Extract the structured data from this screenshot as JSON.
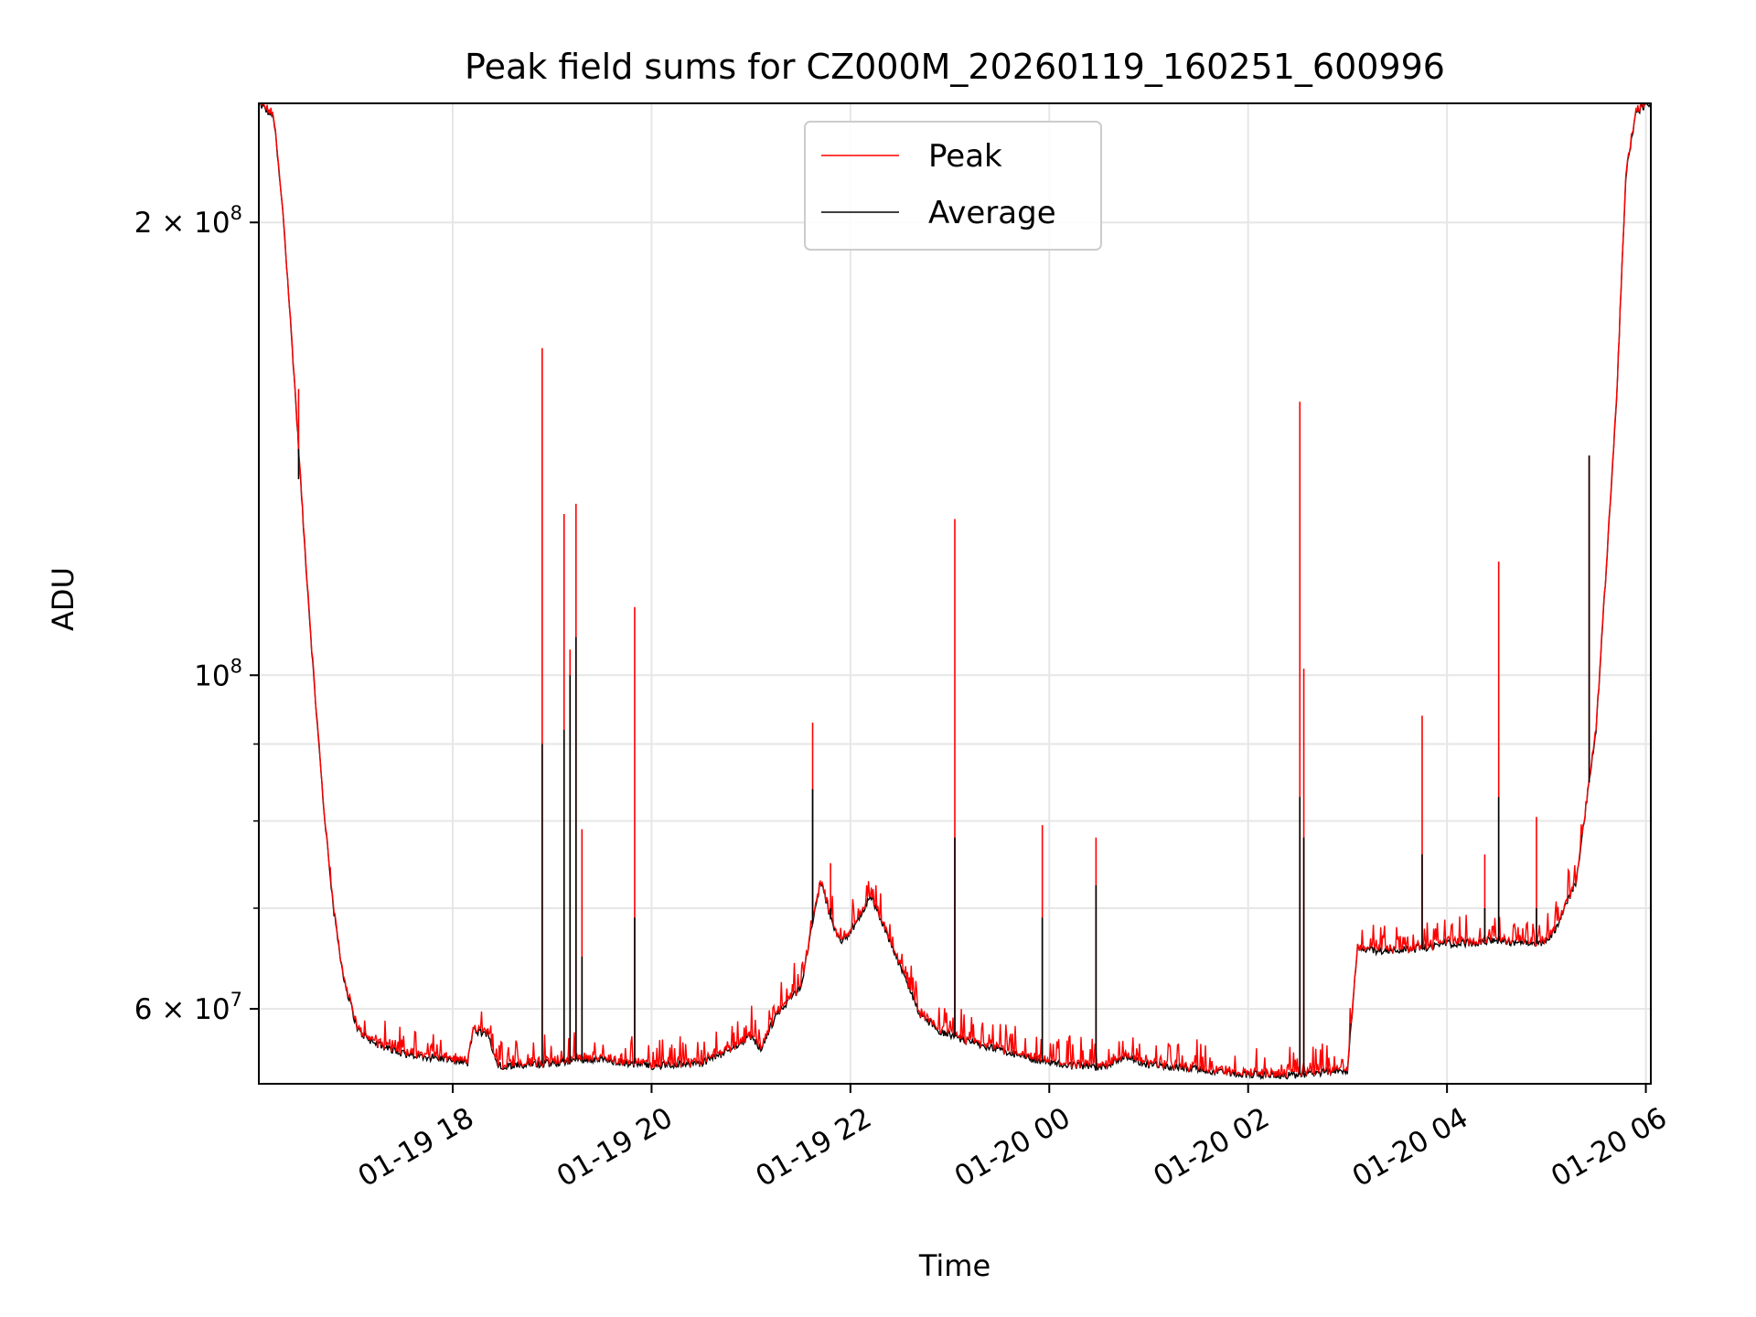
{
  "chart_data": {
    "type": "line",
    "title": "Peak field sums for CZ000M_20260119_160251_600996",
    "xlabel": "Time",
    "ylabel": "ADU",
    "yscale": "log",
    "xlim_hours": [
      16.05,
      30.05
    ],
    "ylim": [
      53500000,
      240000000
    ],
    "grid": true,
    "legend_position": "top-center",
    "x_ticks": [
      {
        "hours": 18,
        "label": "01-19 18"
      },
      {
        "hours": 20,
        "label": "01-19 20"
      },
      {
        "hours": 22,
        "label": "01-19 22"
      },
      {
        "hours": 24,
        "label": "01-20 00"
      },
      {
        "hours": 26,
        "label": "01-20 02"
      },
      {
        "hours": 28,
        "label": "01-20 04"
      },
      {
        "hours": 30,
        "label": "01-20 06"
      }
    ],
    "y_ticks": [
      {
        "value": 60000000,
        "mant": "6",
        "exp": "7"
      },
      {
        "value": 100000000,
        "mant": "",
        "exp": "8"
      },
      {
        "value": 200000000,
        "mant": "2",
        "exp": "8"
      }
    ],
    "y_minor_ticks": [
      70000000,
      80000000,
      90000000
    ],
    "series": [
      {
        "name": "Peak",
        "color": "#ff0000"
      },
      {
        "name": "Average",
        "color": "#000000"
      }
    ],
    "average_baseline": {
      "x_hours": [
        16.05,
        16.2,
        16.3,
        16.4,
        16.5,
        16.6,
        16.7,
        16.8,
        16.9,
        17.0,
        17.05,
        17.2,
        17.5,
        18.0,
        18.15,
        18.2,
        18.35,
        18.45,
        19.0,
        19.3,
        19.5,
        20.0,
        20.5,
        20.7,
        21.0,
        21.1,
        21.2,
        21.3,
        21.5,
        21.7,
        21.8,
        21.9,
        22.0,
        22.1,
        22.2,
        22.3,
        22.5,
        22.7,
        22.9,
        23.2,
        23.5,
        24.0,
        24.5,
        24.75,
        25.0,
        25.5,
        26.0,
        26.3,
        26.6,
        27.0,
        27.1,
        27.25,
        27.7,
        28.0,
        28.5,
        28.9,
        29.0,
        29.1,
        29.3,
        29.5,
        29.7,
        29.8,
        29.9,
        30.05
      ],
      "values": [
        240000000,
        235000000,
        200000000,
        160000000,
        125000000,
        100000000,
        82000000,
        70000000,
        63000000,
        59500000,
        58000000,
        57000000,
        56000000,
        55500000,
        55200000,
        58000000,
        57800000,
        55000000,
        55200000,
        55600000,
        55500000,
        55000000,
        55200000,
        56000000,
        57500000,
        56500000,
        58500000,
        60000000,
        62000000,
        73000000,
        69000000,
        66500000,
        67500000,
        69000000,
        71500000,
        69000000,
        64000000,
        59500000,
        58000000,
        57000000,
        56300000,
        55200000,
        54800000,
        55800000,
        55100000,
        54700000,
        54300000,
        54200000,
        54300000,
        54600000,
        66000000,
        65600000,
        65800000,
        66300000,
        66600000,
        66300000,
        66500000,
        68000000,
        73000000,
        92000000,
        150000000,
        215000000,
        237000000,
        240000000
      ]
    },
    "spikes": [
      {
        "x_hours": 16.45,
        "peak": 155000000,
        "average": 135000000
      },
      {
        "x_hours": 18.9,
        "peak": 165000000,
        "average": 90000000
      },
      {
        "x_hours": 19.12,
        "peak": 128000000,
        "average": 92000000
      },
      {
        "x_hours": 19.18,
        "peak": 104000000,
        "average": 100000000
      },
      {
        "x_hours": 19.24,
        "peak": 130000000,
        "average": 106000000
      },
      {
        "x_hours": 19.3,
        "peak": 79000000,
        "average": 65000000
      },
      {
        "x_hours": 19.83,
        "peak": 111000000,
        "average": 69000000
      },
      {
        "x_hours": 21.62,
        "peak": 93000000,
        "average": 84000000
      },
      {
        "x_hours": 21.8,
        "peak": 75000000,
        "average": 70000000
      },
      {
        "x_hours": 23.05,
        "peak": 127000000,
        "average": 78000000
      },
      {
        "x_hours": 23.93,
        "peak": 79500000,
        "average": 69000000
      },
      {
        "x_hours": 24.47,
        "peak": 78000000,
        "average": 72500000
      },
      {
        "x_hours": 26.52,
        "peak": 152000000,
        "average": 83000000
      },
      {
        "x_hours": 26.56,
        "peak": 101000000,
        "average": 78000000
      },
      {
        "x_hours": 27.75,
        "peak": 94000000,
        "average": 76000000
      },
      {
        "x_hours": 28.38,
        "peak": 76000000,
        "average": 70000000
      },
      {
        "x_hours": 28.52,
        "peak": 119000000,
        "average": 83000000
      },
      {
        "x_hours": 28.9,
        "peak": 80500000,
        "average": 70000000
      },
      {
        "x_hours": 29.43,
        "peak": 140000000,
        "average": 140000000
      }
    ]
  }
}
